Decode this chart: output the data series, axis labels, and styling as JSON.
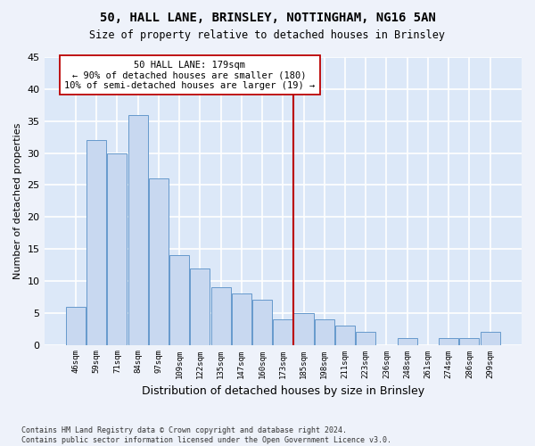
{
  "title": "50, HALL LANE, BRINSLEY, NOTTINGHAM, NG16 5AN",
  "subtitle": "Size of property relative to detached houses in Brinsley",
  "xlabel": "Distribution of detached houses by size in Brinsley",
  "ylabel": "Number of detached properties",
  "categories": [
    "46sqm",
    "59sqm",
    "71sqm",
    "84sqm",
    "97sqm",
    "109sqm",
    "122sqm",
    "135sqm",
    "147sqm",
    "160sqm",
    "173sqm",
    "185sqm",
    "198sqm",
    "211sqm",
    "223sqm",
    "236sqm",
    "248sqm",
    "261sqm",
    "274sqm",
    "286sqm",
    "299sqm"
  ],
  "bar_heights": [
    6,
    32,
    30,
    36,
    26,
    14,
    12,
    9,
    8,
    7,
    4,
    5,
    4,
    3,
    2,
    0,
    1,
    0,
    1,
    1,
    2
  ],
  "bar_color": "#c8d8f0",
  "bar_edge_color": "#6699cc",
  "vline_x_index": 10,
  "vline_color": "#bb0000",
  "annotation_line1": "50 HALL LANE: 179sqm",
  "annotation_line2": "← 90% of detached houses are smaller (180)",
  "annotation_line3": "10% of semi-detached houses are larger (19) →",
  "annotation_box_color": "#ffffff",
  "annotation_box_edge": "#bb0000",
  "bg_color": "#dce8f8",
  "fig_bg_color": "#eef2fa",
  "grid_color": "#ffffff",
  "footer": "Contains HM Land Registry data © Crown copyright and database right 2024.\nContains public sector information licensed under the Open Government Licence v3.0.",
  "ylim": [
    0,
    45
  ],
  "yticks": [
    0,
    5,
    10,
    15,
    20,
    25,
    30,
    35,
    40,
    45
  ]
}
